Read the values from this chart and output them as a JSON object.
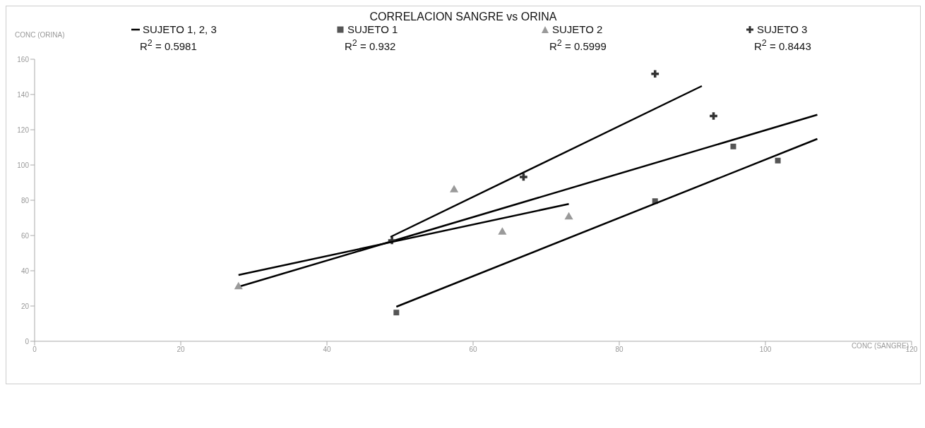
{
  "chart_data": {
    "type": "scatter",
    "title": "CORRELACION SANGRE vs ORINA",
    "xlabel": "CONC (SANGRE)",
    "ylabel": "CONC (ORINA)",
    "xlim": [
      0,
      120
    ],
    "xticks": [
      0,
      20,
      40,
      60,
      80,
      100,
      120
    ],
    "ylim": [
      0,
      160
    ],
    "yticks": [
      0,
      20,
      40,
      60,
      80,
      100,
      120,
      140,
      160
    ],
    "grid": false,
    "legend": "top",
    "annotations": [
      "R$^{2}$ = 0.5981",
      "R$^{2}$ = 0.932",
      "R$^{2}$ = 0.5999",
      "R$^{2}$ = 0.8443"
    ],
    "series": [
      {
        "name": "SUJETO 1, 2, 3",
        "type": "line",
        "color": "#000000",
        "x": [
          27.9,
          107.1
        ],
        "values": [
          30.9,
          128.5
        ]
      },
      {
        "name": "SUJETO 1",
        "color": "#555555",
        "marker": "square",
        "x": [
          49.5,
          84.9,
          95.6,
          101.7
        ],
        "values": [
          16.3,
          79.5,
          110.5,
          102.5
        ]
      },
      {
        "name": "SUJETO 2",
        "color": "#9a9a9a",
        "marker": "triangle",
        "x": [
          27.9,
          57.4,
          64.0,
          73.1
        ],
        "values": [
          30.9,
          85.9,
          61.9,
          70.5
        ]
      },
      {
        "name": "SUJETO 3",
        "color": "#333333",
        "marker": "cross",
        "x": [
          48.9,
          66.9,
          84.9,
          92.9
        ],
        "values": [
          57.2,
          93.2,
          151.7,
          127.8
        ]
      },
      {
        "type": "line",
        "color": "#000000",
        "x": [
          49.5,
          107.1
        ],
        "values": [
          19.6,
          114.8
        ]
      },
      {
        "type": "line",
        "color": "#000000",
        "x": [
          27.9,
          73.1
        ],
        "values": [
          37.6,
          77.9
        ]
      },
      {
        "type": "line",
        "color": "#000000",
        "x": [
          48.7,
          91.3
        ],
        "values": [
          59.2,
          144.8
        ]
      }
    ]
  }
}
